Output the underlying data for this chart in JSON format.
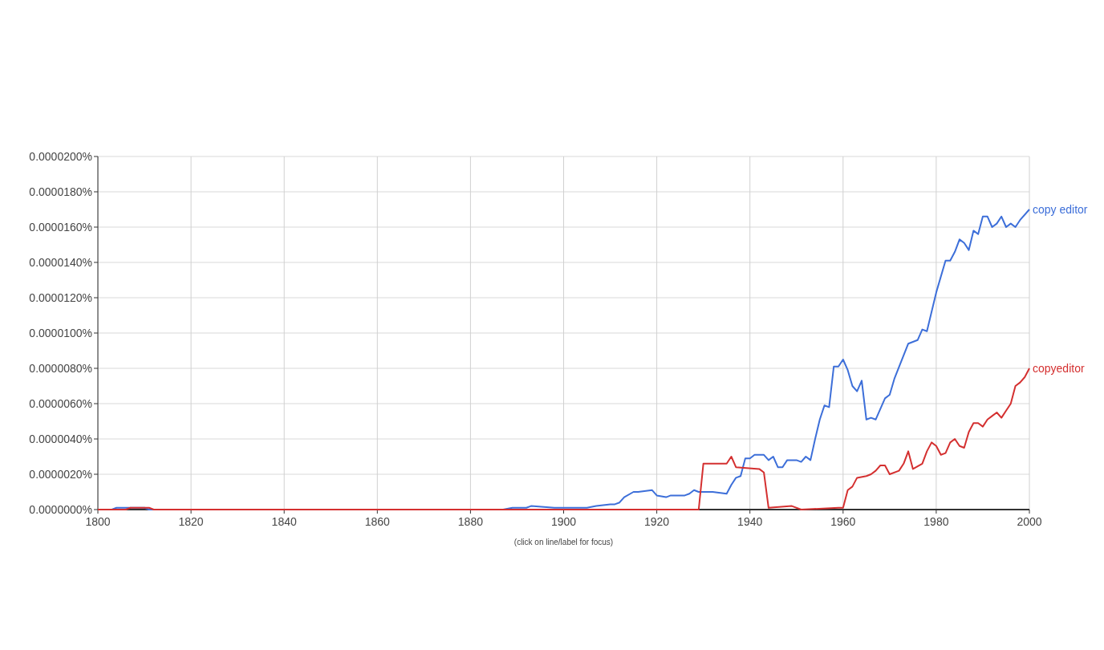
{
  "chart_data": {
    "type": "line",
    "xlim": [
      1800,
      2000
    ],
    "xticks": [
      1800,
      1820,
      1840,
      1860,
      1880,
      1900,
      1920,
      1940,
      1960,
      1980,
      2000
    ],
    "ylim": [
      0,
      2e-05
    ],
    "yticks": [
      {
        "value": 0,
        "label": "0.0000000%"
      },
      {
        "value": 2e-06,
        "label": "0.0000020%"
      },
      {
        "value": 4e-06,
        "label": "0.0000040%"
      },
      {
        "value": 6e-06,
        "label": "0.0000060%"
      },
      {
        "value": 8e-06,
        "label": "0.0000080%"
      },
      {
        "value": 1e-05,
        "label": "0.0000100%"
      },
      {
        "value": 1.2e-05,
        "label": "0.0000120%"
      },
      {
        "value": 1.4e-05,
        "label": "0.0000140%"
      },
      {
        "value": 1.6e-05,
        "label": "0.0000160%"
      },
      {
        "value": 1.8e-05,
        "label": "0.0000180%"
      },
      {
        "value": 2e-05,
        "label": "0.0000200%"
      }
    ],
    "grid": true,
    "annotations": [
      "(click on line/label for focus)"
    ],
    "series": [
      {
        "name": "copy editor",
        "color": "#3d6fd9",
        "x": [
          1800,
          1803,
          1804,
          1810,
          1811,
          1887,
          1889,
          1892,
          1893,
          1898,
          1905,
          1907,
          1910,
          1911,
          1912,
          1913,
          1915,
          1916,
          1919,
          1920,
          1922,
          1923,
          1926,
          1927,
          1928,
          1929,
          1932,
          1935,
          1936,
          1937,
          1938,
          1939,
          1940,
          1941,
          1943,
          1944,
          1945,
          1946,
          1947,
          1948,
          1949,
          1950,
          1951,
          1952,
          1953,
          1954,
          1955,
          1956,
          1957,
          1958,
          1959,
          1960,
          1961,
          1962,
          1963,
          1964,
          1965,
          1966,
          1967,
          1968,
          1969,
          1970,
          1971,
          1974,
          1976,
          1977,
          1978,
          1980,
          1982,
          1983,
          1984,
          1985,
          1986,
          1987,
          1988,
          1989,
          1990,
          1991,
          1992,
          1993,
          1994,
          1995,
          1996,
          1997,
          1998,
          2000
        ],
        "values": [
          0,
          0,
          1e-07,
          1e-07,
          0,
          0,
          1e-07,
          1e-07,
          2e-07,
          1e-07,
          1e-07,
          2e-07,
          3e-07,
          3e-07,
          4e-07,
          7e-07,
          1e-06,
          1e-06,
          1.1e-06,
          8e-07,
          7e-07,
          8e-07,
          8e-07,
          9e-07,
          1.1e-06,
          1e-06,
          1e-06,
          9e-07,
          1.4e-06,
          1.8e-06,
          1.9e-06,
          2.9e-06,
          2.9e-06,
          3.1e-06,
          3.1e-06,
          2.8e-06,
          3e-06,
          2.4e-06,
          2.4e-06,
          2.8e-06,
          2.8e-06,
          2.8e-06,
          2.7e-06,
          3e-06,
          2.8e-06,
          4e-06,
          5.1e-06,
          5.9e-06,
          5.8e-06,
          8.1e-06,
          8.1e-06,
          8.5e-06,
          7.9e-06,
          7e-06,
          6.7e-06,
          7.3e-06,
          5.1e-06,
          5.2e-06,
          5.1e-06,
          5.7e-06,
          6.3e-06,
          6.5e-06,
          7.4e-06,
          9.4e-06,
          9.6e-06,
          1.02e-05,
          1.01e-05,
          1.23e-05,
          1.41e-05,
          1.41e-05,
          1.46e-05,
          1.53e-05,
          1.51e-05,
          1.47e-05,
          1.58e-05,
          1.56e-05,
          1.66e-05,
          1.66e-05,
          1.6e-05,
          1.62e-05,
          1.66e-05,
          1.6e-05,
          1.62e-05,
          1.6e-05,
          1.64e-05,
          1.7e-05
        ]
      },
      {
        "name": "copyeditor",
        "color": "#d43030",
        "x": [
          1800,
          1806,
          1807,
          1811,
          1812,
          1929,
          1930,
          1935,
          1936,
          1937,
          1942,
          1943,
          1944,
          1949,
          1951,
          1959,
          1960,
          1961,
          1962,
          1963,
          1965,
          1966,
          1967,
          1968,
          1969,
          1970,
          1972,
          1973,
          1974,
          1975,
          1977,
          1978,
          1979,
          1980,
          1981,
          1982,
          1983,
          1984,
          1985,
          1986,
          1987,
          1988,
          1989,
          1990,
          1991,
          1992,
          1993,
          1994,
          1995,
          1996,
          1997,
          1998,
          1999,
          2000
        ],
        "values": [
          0,
          0,
          1e-07,
          1e-07,
          0,
          0,
          2.6e-06,
          2.6e-06,
          3e-06,
          2.4e-06,
          2.3e-06,
          2.1e-06,
          1e-07,
          2e-07,
          0,
          1e-07,
          1e-07,
          1.1e-06,
          1.3e-06,
          1.8e-06,
          1.9e-06,
          2e-06,
          2.2e-06,
          2.5e-06,
          2.5e-06,
          2e-06,
          2.2e-06,
          2.6e-06,
          3.3e-06,
          2.3e-06,
          2.6e-06,
          3.3e-06,
          3.8e-06,
          3.6e-06,
          3.1e-06,
          3.2e-06,
          3.8e-06,
          4e-06,
          3.6e-06,
          3.5e-06,
          4.4e-06,
          4.9e-06,
          4.9e-06,
          4.7e-06,
          5.1e-06,
          5.3e-06,
          5.5e-06,
          5.2e-06,
          5.6e-06,
          6e-06,
          7e-06,
          7.2e-06,
          7.5e-06,
          8e-06
        ]
      }
    ]
  }
}
